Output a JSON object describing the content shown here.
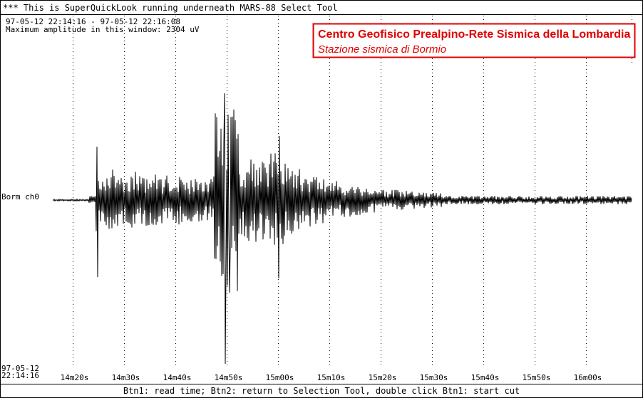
{
  "window_title": "*** This is SuperQuickLook running underneath MARS-88 Select Tool",
  "time_range": "97-05-12 22:14:16 - 97-05-12 22:16:08",
  "max_amplitude": "Maximum amplitude in this window: 2304 uV",
  "banner": {
    "title": "Centro Geofisico Prealpino-Rete Sismica della Lombardia",
    "subtitle": "Stazione sismica di Bormio"
  },
  "channel": "Borm ch0",
  "start_date": "97-05-12",
  "start_time": "22:14:16",
  "time_labels": [
    "14m20s",
    "14m30s",
    "14m40s",
    "14m50s",
    "15m00s",
    "15m10s",
    "15m20s",
    "15m30s",
    "15m40s",
    "15m50s",
    "16m00s"
  ],
  "footer": "Btn1: read time; Btn2: return to Selection Tool, double click Btn1: start cut"
}
